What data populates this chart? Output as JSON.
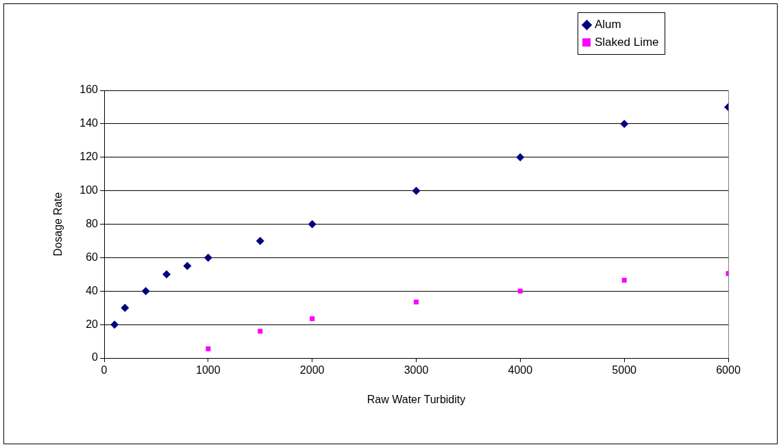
{
  "chart_data": {
    "type": "scatter",
    "xlabel": "Raw Water Turbidity",
    "ylabel": "Dosage Rate",
    "xlim": [
      0,
      6000
    ],
    "xticks": [
      0,
      1000,
      2000,
      3000,
      4000,
      5000,
      6000
    ],
    "ylim": [
      0,
      160
    ],
    "yticks": [
      0,
      20,
      40,
      60,
      80,
      100,
      120,
      140,
      160
    ],
    "grid": "y",
    "legend": "top right",
    "series": [
      {
        "name": "Alum",
        "color": "#000080",
        "marker": "diamond",
        "x": [
          100,
          200,
          400,
          600,
          800,
          1000,
          1500,
          2000,
          3000,
          4000,
          5000,
          6000
        ],
        "values": [
          20,
          30,
          40,
          50,
          55,
          60,
          70,
          80,
          100,
          120,
          140,
          150
        ]
      },
      {
        "name": "Slaked Lime",
        "color": "#ff00ff",
        "marker": "square",
        "x": [
          1000,
          1500,
          2000,
          3000,
          4000,
          5000,
          6000
        ],
        "values": [
          5.5,
          16,
          23.5,
          33.5,
          40,
          46.5,
          50.5
        ]
      }
    ]
  }
}
